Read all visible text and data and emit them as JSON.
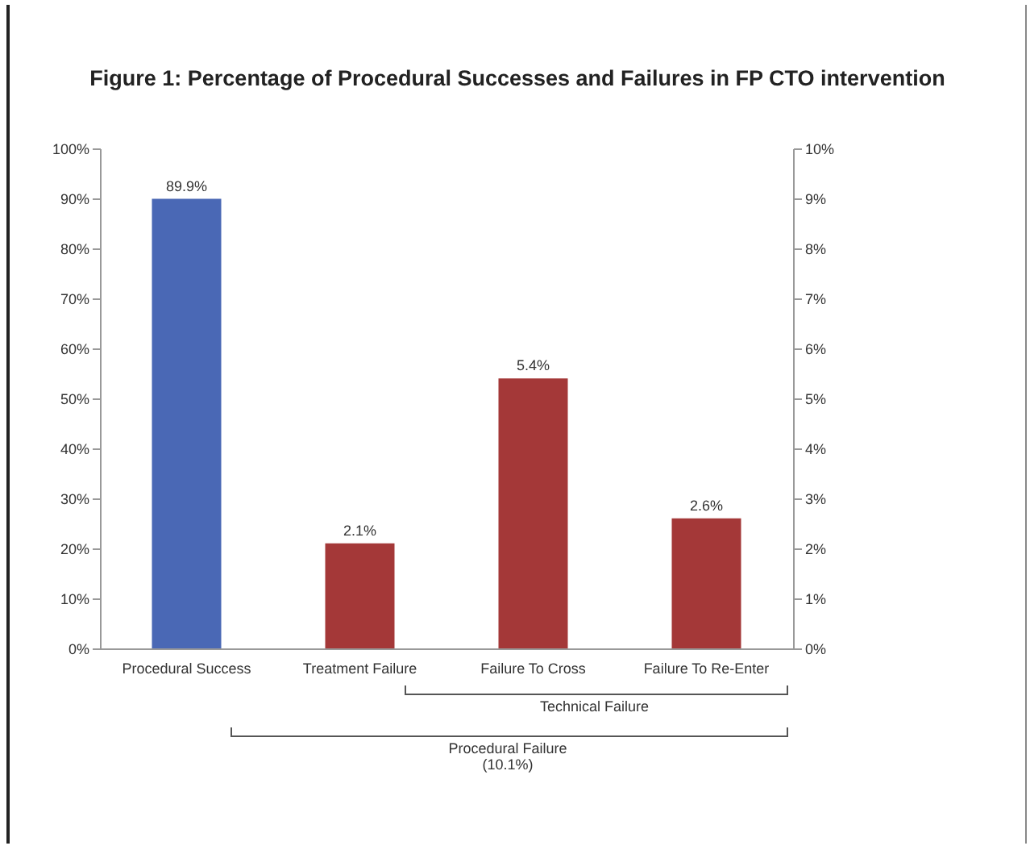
{
  "chart_data": {
    "type": "bar",
    "title": "Figure 1: Percentage of Procedural Successes and Failures in FP CTO intervention",
    "categories": [
      "Procedural Success",
      "Treatment Failure",
      "Failure To Cross",
      "Failure To Re-Enter"
    ],
    "series": [
      {
        "color": "#4a68b5",
        "values": [
          89.9,
          null,
          null,
          null
        ],
        "value_labels": [
          "89.9%",
          null,
          null,
          null
        ]
      },
      {
        "color": "#a43838",
        "axis": "y2",
        "values": [
          null,
          2.1,
          5.4,
          2.6
        ],
        "value_labels": [
          null,
          "2.1%",
          "5.4%",
          "2.6%"
        ]
      }
    ],
    "ylim": [
      0,
      100
    ],
    "yticks": [
      {
        "value": 0,
        "label": "0%"
      },
      {
        "value": 10,
        "label": "10%"
      },
      {
        "value": 20,
        "label": "20%"
      },
      {
        "value": 30,
        "label": "30%"
      },
      {
        "value": 40,
        "label": "40%"
      },
      {
        "value": 50,
        "label": "50%"
      },
      {
        "value": 60,
        "label": "60%"
      },
      {
        "value": 70,
        "label": "70%"
      },
      {
        "value": 80,
        "label": "80%"
      },
      {
        "value": 90,
        "label": "90%"
      },
      {
        "value": 100,
        "label": "100%"
      }
    ],
    "y2lim": [
      0,
      10
    ],
    "y2ticks": [
      {
        "value": 0,
        "label": "0%"
      },
      {
        "value": 1,
        "label": "1%"
      },
      {
        "value": 2,
        "label": "2%"
      },
      {
        "value": 3,
        "label": "3%"
      },
      {
        "value": 4,
        "label": "4%"
      },
      {
        "value": 5,
        "label": "5%"
      },
      {
        "value": 6,
        "label": "6%"
      },
      {
        "value": 7,
        "label": "7%"
      },
      {
        "value": 8,
        "label": "8%"
      },
      {
        "value": 9,
        "label": "9%"
      },
      {
        "value": 10,
        "label": "10%"
      }
    ],
    "annotations": [
      "Technical Failure",
      "Procedural Failure (10.1%)"
    ]
  }
}
